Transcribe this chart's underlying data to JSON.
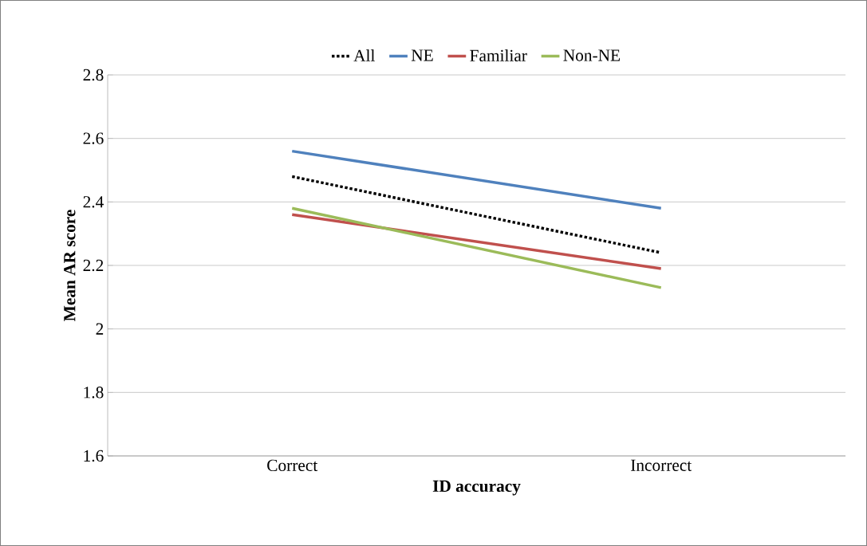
{
  "chart_data": {
    "type": "line",
    "xlabel": "ID accuracy",
    "ylabel": "Mean AR score",
    "categories": [
      "Correct",
      "Incorrect"
    ],
    "series": [
      {
        "name": "All",
        "color": "#000000",
        "values": [
          2.48,
          2.24
        ],
        "line_style": "dotted"
      },
      {
        "name": "NE",
        "color": "#4f81bd",
        "values": [
          2.56,
          2.38
        ]
      },
      {
        "name": "Familiar",
        "color": "#c0504d",
        "values": [
          2.36,
          2.19
        ]
      },
      {
        "name": "Non-NE",
        "color": "#9bbb59",
        "values": [
          2.38,
          2.13
        ]
      }
    ],
    "ylim": [
      1.6,
      2.8
    ],
    "yticks": [
      1.6,
      1.8,
      2,
      2.2,
      2.4,
      2.6,
      2.8
    ],
    "grid": "y",
    "legend": "top",
    "marker": "none"
  }
}
